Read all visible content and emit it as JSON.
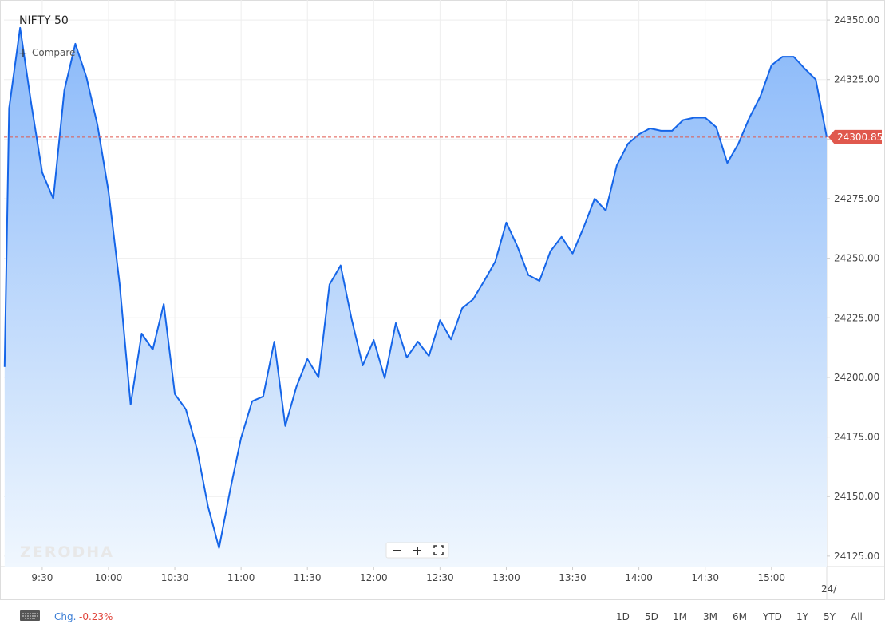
{
  "chart_data": {
    "type": "line",
    "title": "NIFTY 50",
    "color": "#1565e8",
    "x": [
      553,
      555,
      560,
      565,
      570,
      575,
      580,
      585,
      590,
      595,
      600,
      605,
      610,
      615,
      620,
      625,
      630,
      635,
      640,
      645,
      650,
      655,
      660,
      665,
      670,
      675,
      680,
      685,
      690,
      695,
      700,
      705,
      710,
      715,
      720,
      725,
      730,
      735,
      740,
      745,
      750,
      755,
      760,
      765,
      770,
      775,
      780,
      785,
      790,
      795,
      800,
      805,
      810,
      815,
      820,
      825,
      830,
      835,
      840,
      845,
      850,
      855,
      860,
      865,
      870,
      875,
      880,
      885,
      890,
      895,
      900,
      905,
      910,
      915,
      920,
      925
    ],
    "values": [
      24204.4,
      24313,
      24346.7,
      24315,
      24286,
      24275,
      24320.5,
      24340,
      24326,
      24306,
      24278,
      24239.5,
      24188.6,
      24218.4,
      24211.7,
      24230.8,
      24193,
      24186.6,
      24170,
      24146,
      24128.4,
      24152.5,
      24174.6,
      24190,
      24192,
      24215,
      24179.6,
      24196,
      24207.7,
      24200,
      24239,
      24247,
      24224.5,
      24205,
      24215.7,
      24199.7,
      24222.8,
      24208.4,
      24215,
      24209,
      24224,
      24216,
      24229,
      24232.8,
      24240.5,
      24248.6,
      24265,
      24255,
      24243,
      24240.5,
      24253,
      24259,
      24252,
      24263,
      24275,
      24270,
      24289,
      24298,
      24302,
      24304.5,
      24303.5,
      24303.5,
      24308,
      24309,
      24309,
      24305,
      24290,
      24298,
      24309,
      24318,
      24331,
      24334.6,
      24334.6,
      24329.6,
      24325,
      24300.85
    ],
    "last_value": 24300.85,
    "xlim": [
      552.7,
      925
    ],
    "ylim": [
      24120.6,
      24358.4
    ],
    "xticks": [
      {
        "value": 570,
        "label": "9:30"
      },
      {
        "value": 600,
        "label": "10:00"
      },
      {
        "value": 630,
        "label": "10:30"
      },
      {
        "value": 660,
        "label": "11:00"
      },
      {
        "value": 690,
        "label": "11:30"
      },
      {
        "value": 720,
        "label": "12:00"
      },
      {
        "value": 750,
        "label": "12:30"
      },
      {
        "value": 780,
        "label": "13:00"
      },
      {
        "value": 810,
        "label": "13:30"
      },
      {
        "value": 840,
        "label": "14:00"
      },
      {
        "value": 870,
        "label": "14:30"
      },
      {
        "value": 900,
        "label": "15:00"
      }
    ],
    "yticks": [
      {
        "value": 24125,
        "label": "24125.00"
      },
      {
        "value": 24150,
        "label": "24150.00"
      },
      {
        "value": 24175,
        "label": "24175.00"
      },
      {
        "value": 24200,
        "label": "24200.00"
      },
      {
        "value": 24225,
        "label": "24225.00"
      },
      {
        "value": 24250,
        "label": "24250.00"
      },
      {
        "value": 24275,
        "label": "24275.00"
      },
      {
        "value": 24300,
        "label": "24300.00"
      },
      {
        "value": 24325,
        "label": "24325.00"
      },
      {
        "value": 24350,
        "label": "24350.00"
      }
    ],
    "grid": true
  },
  "ui": {
    "compare": "Compare",
    "watermark": "ZERODHA",
    "next_date": "24/",
    "change_label": "Chg.",
    "change_value": "-0.23%",
    "ranges": [
      "1D",
      "5D",
      "1M",
      "3M",
      "6M",
      "YTD",
      "1Y",
      "5Y",
      "All"
    ]
  }
}
